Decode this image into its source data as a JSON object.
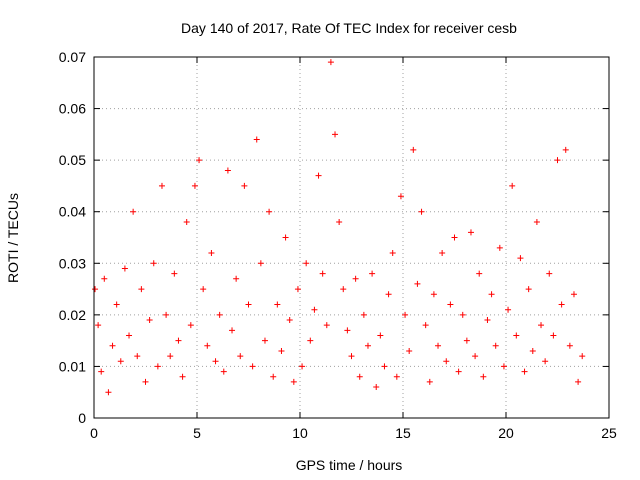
{
  "chart_data": {
    "type": "scatter",
    "title": "Day 140 of 2017, Rate Of TEC Index for receiver cesb",
    "xlabel": "GPS time / hours",
    "ylabel": "ROTI / TECUs",
    "xlim": [
      0,
      25
    ],
    "ylim": [
      0,
      0.07
    ],
    "xticks": [
      "0",
      "5",
      "10",
      "15",
      "20",
      "25"
    ],
    "yticks": [
      "0",
      "0.01",
      "0.02",
      "0.03",
      "0.04",
      "0.05",
      "0.06",
      "0.07"
    ],
    "grid": true,
    "marker": "+",
    "color": "#ff0000",
    "series": [
      {
        "x": [
          0.05,
          0.2,
          0.35,
          0.5,
          0.7,
          0.9,
          1.1,
          1.3,
          1.5,
          1.7,
          1.9,
          2.1,
          2.3,
          2.5,
          2.7,
          2.9,
          3.1,
          3.3,
          3.5,
          3.7,
          3.9,
          4.1,
          4.3,
          4.5,
          4.7,
          4.9,
          5.1,
          5.3,
          5.5,
          5.7,
          5.9,
          6.1,
          6.3,
          6.5,
          6.7,
          6.9,
          7.1,
          7.3,
          7.5,
          7.7,
          7.9,
          8.1,
          8.3,
          8.5,
          8.7,
          8.9,
          9.1,
          9.3,
          9.5,
          9.7,
          9.9,
          10.1,
          10.3,
          10.5,
          10.7,
          10.9,
          11.1,
          11.3,
          11.5,
          11.7,
          11.9,
          12.1,
          12.3,
          12.5,
          12.7,
          12.9,
          13.1,
          13.3,
          13.5,
          13.7,
          13.9,
          14.1,
          14.3,
          14.5,
          14.7,
          14.9,
          15.1,
          15.3,
          15.5,
          15.7,
          15.9,
          16.1,
          16.3,
          16.5,
          16.7,
          16.9,
          17.1,
          17.3,
          17.5,
          17.7,
          17.9,
          18.1,
          18.3,
          18.5,
          18.7,
          18.9,
          19.1,
          19.3,
          19.5,
          19.7,
          19.9,
          20.1,
          20.3,
          20.5,
          20.7,
          20.9,
          21.1,
          21.3,
          21.5,
          21.7,
          21.9,
          22.1,
          22.3,
          22.5,
          22.7,
          22.9,
          23.1,
          23.3,
          23.5,
          23.7
        ],
        "y": [
          0.025,
          0.018,
          0.009,
          0.027,
          0.005,
          0.014,
          0.022,
          0.011,
          0.029,
          0.016,
          0.04,
          0.012,
          0.025,
          0.007,
          0.019,
          0.03,
          0.01,
          0.045,
          0.02,
          0.012,
          0.028,
          0.015,
          0.008,
          0.038,
          0.018,
          0.045,
          0.05,
          0.025,
          0.014,
          0.032,
          0.011,
          0.02,
          0.009,
          0.048,
          0.017,
          0.027,
          0.012,
          0.045,
          0.022,
          0.01,
          0.054,
          0.03,
          0.015,
          0.04,
          0.008,
          0.022,
          0.013,
          0.035,
          0.019,
          0.007,
          0.025,
          0.01,
          0.03,
          0.015,
          0.021,
          0.047,
          0.028,
          0.018,
          0.069,
          0.055,
          0.038,
          0.025,
          0.017,
          0.012,
          0.027,
          0.008,
          0.02,
          0.014,
          0.028,
          0.006,
          0.016,
          0.01,
          0.024,
          0.032,
          0.008,
          0.043,
          0.02,
          0.013,
          0.052,
          0.026,
          0.04,
          0.018,
          0.007,
          0.024,
          0.014,
          0.032,
          0.011,
          0.022,
          0.035,
          0.009,
          0.02,
          0.015,
          0.036,
          0.012,
          0.028,
          0.008,
          0.019,
          0.024,
          0.014,
          0.033,
          0.01,
          0.021,
          0.045,
          0.016,
          0.031,
          0.009,
          0.025,
          0.013,
          0.038,
          0.018,
          0.011,
          0.028,
          0.016,
          0.05,
          0.022,
          0.052,
          0.014,
          0.024,
          0.007,
          0.012
        ]
      }
    ]
  }
}
